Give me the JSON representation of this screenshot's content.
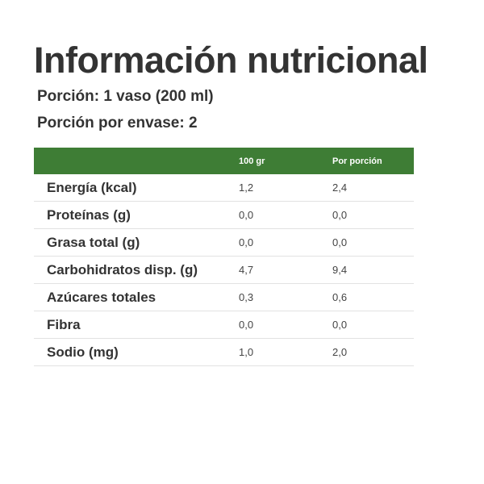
{
  "title": "Información nutricional",
  "serving_size": "Porción: 1 vaso (200 ml)",
  "servings_per_container": "Porción por envase: 2",
  "colors": {
    "header_background": "#3e7d35",
    "header_text": "#ffffff",
    "text": "#333333"
  },
  "table": {
    "headers": [
      "",
      "100 gr",
      "Por porción"
    ],
    "rows": [
      {
        "nutrient": "Energía (kcal)",
        "per_100g": "1,2",
        "per_serving": "2,4"
      },
      {
        "nutrient": "Proteínas (g)",
        "per_100g": "0,0",
        "per_serving": "0,0"
      },
      {
        "nutrient": "Grasa total (g)",
        "per_100g": "0,0",
        "per_serving": "0,0"
      },
      {
        "nutrient": "Carbohidratos disp. (g)",
        "per_100g": "4,7",
        "per_serving": "9,4"
      },
      {
        "nutrient": "Azúcares totales",
        "per_100g": "0,3",
        "per_serving": "0,6"
      },
      {
        "nutrient": "Fibra",
        "per_100g": "0,0",
        "per_serving": "0,0"
      },
      {
        "nutrient": "Sodio (mg)",
        "per_100g": "1,0",
        "per_serving": "2,0"
      }
    ]
  }
}
